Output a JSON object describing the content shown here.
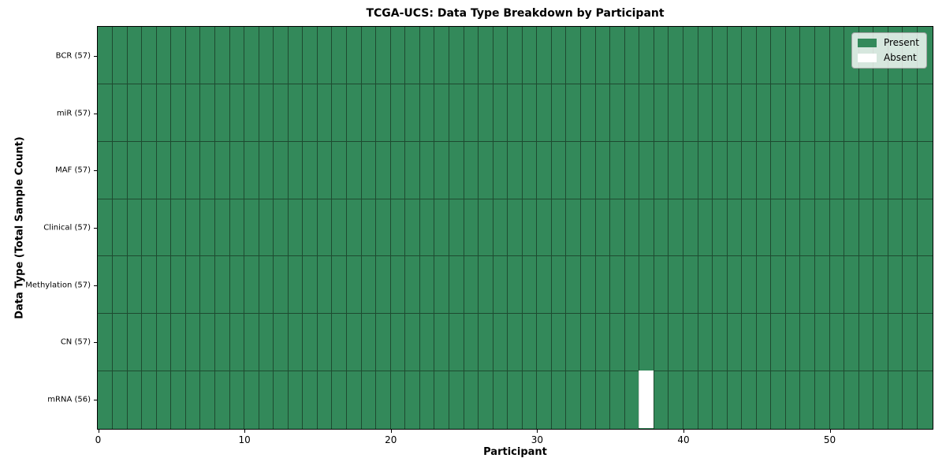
{
  "figure_title": "TCGA-UCS: Data Type Breakdown by Participant",
  "chart_data": {
    "type": "heatmap",
    "title": "TCGA-UCS: Data Type Breakdown by Participant",
    "xlabel": "Participant",
    "ylabel": "Data Type (Total Sample Count)",
    "xlim": [
      0,
      57
    ],
    "n_participants": 57,
    "x_ticks": [
      0,
      10,
      20,
      30,
      40,
      50
    ],
    "grid": true,
    "legend_position": "upper right",
    "rows": [
      {
        "label": "BCR (57)",
        "present_count": 57,
        "absent_participants": []
      },
      {
        "label": "miR (57)",
        "present_count": 57,
        "absent_participants": []
      },
      {
        "label": "MAF (57)",
        "present_count": 57,
        "absent_participants": []
      },
      {
        "label": "Clinical (57)",
        "present_count": 57,
        "absent_participants": []
      },
      {
        "label": "Methylation (57)",
        "present_count": 57,
        "absent_participants": []
      },
      {
        "label": "CN (57)",
        "present_count": 57,
        "absent_participants": []
      },
      {
        "label": "mRNA (56)",
        "present_count": 56,
        "absent_participants": [
          37
        ]
      }
    ],
    "legend": [
      {
        "label": "Present",
        "color": "#33895a"
      },
      {
        "label": "Absent",
        "color": "#ffffff"
      }
    ],
    "colors": {
      "present": "#33895a",
      "absent": "#ffffff",
      "cell_edge": "#1e4a30",
      "spine": "#000000",
      "background": "#ffffff"
    }
  }
}
